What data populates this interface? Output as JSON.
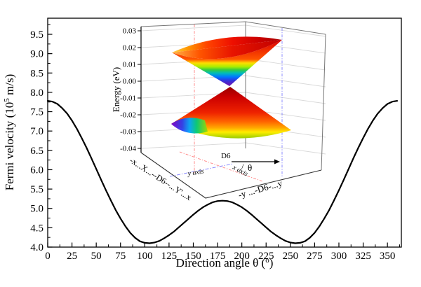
{
  "chart_data": [
    {
      "type": "line",
      "title": "",
      "xlabel_pre": "Direction angle θ (",
      "xlabel_sup": "o",
      "xlabel_post": ")",
      "ylabel_pre": "Fermi velocity (10",
      "ylabel_sup": "5",
      "ylabel_post": " m/s)",
      "xlim": [
        0,
        364
      ],
      "ylim": [
        4.0,
        9.9
      ],
      "grid": false,
      "x_ticks": {
        "values": [
          0,
          25,
          50,
          75,
          100,
          125,
          150,
          175,
          200,
          225,
          250,
          275,
          300,
          325,
          350
        ],
        "labels": [
          "0",
          "25",
          "50",
          "75",
          "100",
          "125",
          "150",
          "175",
          "200",
          "225",
          "250",
          "275",
          "300",
          "325",
          "350"
        ],
        "minor_offset": 12.5
      },
      "y_ticks": {
        "values": [
          4.0,
          4.5,
          5.0,
          5.5,
          6.0,
          6.5,
          7.0,
          7.5,
          8.0,
          8.5,
          9.0,
          9.5
        ],
        "labels": [
          "4.0",
          "4.5",
          "5.0",
          "5.5",
          "6.0",
          "6.5",
          "7.0",
          "7.5",
          "8.0",
          "8.5",
          "9.0",
          "9.5"
        ],
        "minor_offset": 0.25
      },
      "series": [
        {
          "name": "fermi-velocity-vs-angle",
          "color": "#000000",
          "points": [
            [
              0,
              7.78
            ],
            [
              5,
              7.76
            ],
            [
              10,
              7.7
            ],
            [
              15,
              7.59
            ],
            [
              20,
              7.45
            ],
            [
              25,
              7.27
            ],
            [
              30,
              7.06
            ],
            [
              35,
              6.82
            ],
            [
              40,
              6.57
            ],
            [
              45,
              6.3
            ],
            [
              50,
              6.02
            ],
            [
              55,
              5.74
            ],
            [
              60,
              5.47
            ],
            [
              65,
              5.21
            ],
            [
              70,
              4.96
            ],
            [
              75,
              4.74
            ],
            [
              80,
              4.54
            ],
            [
              85,
              4.37
            ],
            [
              90,
              4.24
            ],
            [
              95,
              4.15
            ],
            [
              100,
              4.11
            ],
            [
              105,
              4.1
            ],
            [
              110,
              4.12
            ],
            [
              115,
              4.16
            ],
            [
              120,
              4.23
            ],
            [
              125,
              4.31
            ],
            [
              130,
              4.4
            ],
            [
              135,
              4.51
            ],
            [
              140,
              4.62
            ],
            [
              145,
              4.73
            ],
            [
              150,
              4.84
            ],
            [
              155,
              4.94
            ],
            [
              160,
              5.03
            ],
            [
              165,
              5.1
            ],
            [
              170,
              5.16
            ],
            [
              175,
              5.19
            ],
            [
              180,
              5.2
            ],
            [
              185,
              5.19
            ],
            [
              190,
              5.16
            ],
            [
              195,
              5.1
            ],
            [
              200,
              5.03
            ],
            [
              205,
              4.94
            ],
            [
              210,
              4.84
            ],
            [
              215,
              4.73
            ],
            [
              220,
              4.62
            ],
            [
              225,
              4.51
            ],
            [
              230,
              4.4
            ],
            [
              235,
              4.31
            ],
            [
              240,
              4.23
            ],
            [
              245,
              4.16
            ],
            [
              250,
              4.12
            ],
            [
              255,
              4.1
            ],
            [
              260,
              4.11
            ],
            [
              265,
              4.15
            ],
            [
              270,
              4.24
            ],
            [
              275,
              4.37
            ],
            [
              280,
              4.54
            ],
            [
              285,
              4.74
            ],
            [
              290,
              4.96
            ],
            [
              295,
              5.21
            ],
            [
              300,
              5.47
            ],
            [
              305,
              5.74
            ],
            [
              310,
              6.02
            ],
            [
              315,
              6.3
            ],
            [
              320,
              6.57
            ],
            [
              325,
              6.82
            ],
            [
              330,
              7.06
            ],
            [
              335,
              7.27
            ],
            [
              340,
              7.45
            ],
            [
              345,
              7.59
            ],
            [
              350,
              7.7
            ],
            [
              355,
              7.76
            ],
            [
              360,
              7.78
            ]
          ]
        }
      ]
    },
    {
      "type": "3d-surface-dirac-cone",
      "ylabel": "Energy (eV)",
      "energy_ticks": {
        "values": [
          0.03,
          0.02,
          0.01,
          0.0,
          -0.01,
          -0.02,
          -0.03,
          -0.04
        ],
        "labels": [
          "0.03",
          "0.02",
          "0.01",
          "0.00",
          "-0.01",
          "-0.02",
          "-0.03",
          "-0.04"
        ]
      },
      "dirac_point_energy": 0.0,
      "cone_energy_range": [
        -0.04,
        0.03
      ]
    }
  ],
  "inset": {
    "labels": {
      "energy": "Energy (eV)",
      "d6": "D6",
      "theta": "θ",
      "slash": "/",
      "x_axis": "x axis",
      "y_axis": "y axis",
      "red_path": "-x...X...--D6--...Y'...x",
      "blue_path": "-y ...-D6-...y"
    },
    "colors": {
      "red_text": "#e80000",
      "blue_text": "#1a1ad9",
      "red_dash": "#ff8c8c",
      "blue_dash": "#8c8cff",
      "gridline": "#d9d9d9",
      "wall_edge": "#777777",
      "floor_edge": "#333333"
    }
  }
}
